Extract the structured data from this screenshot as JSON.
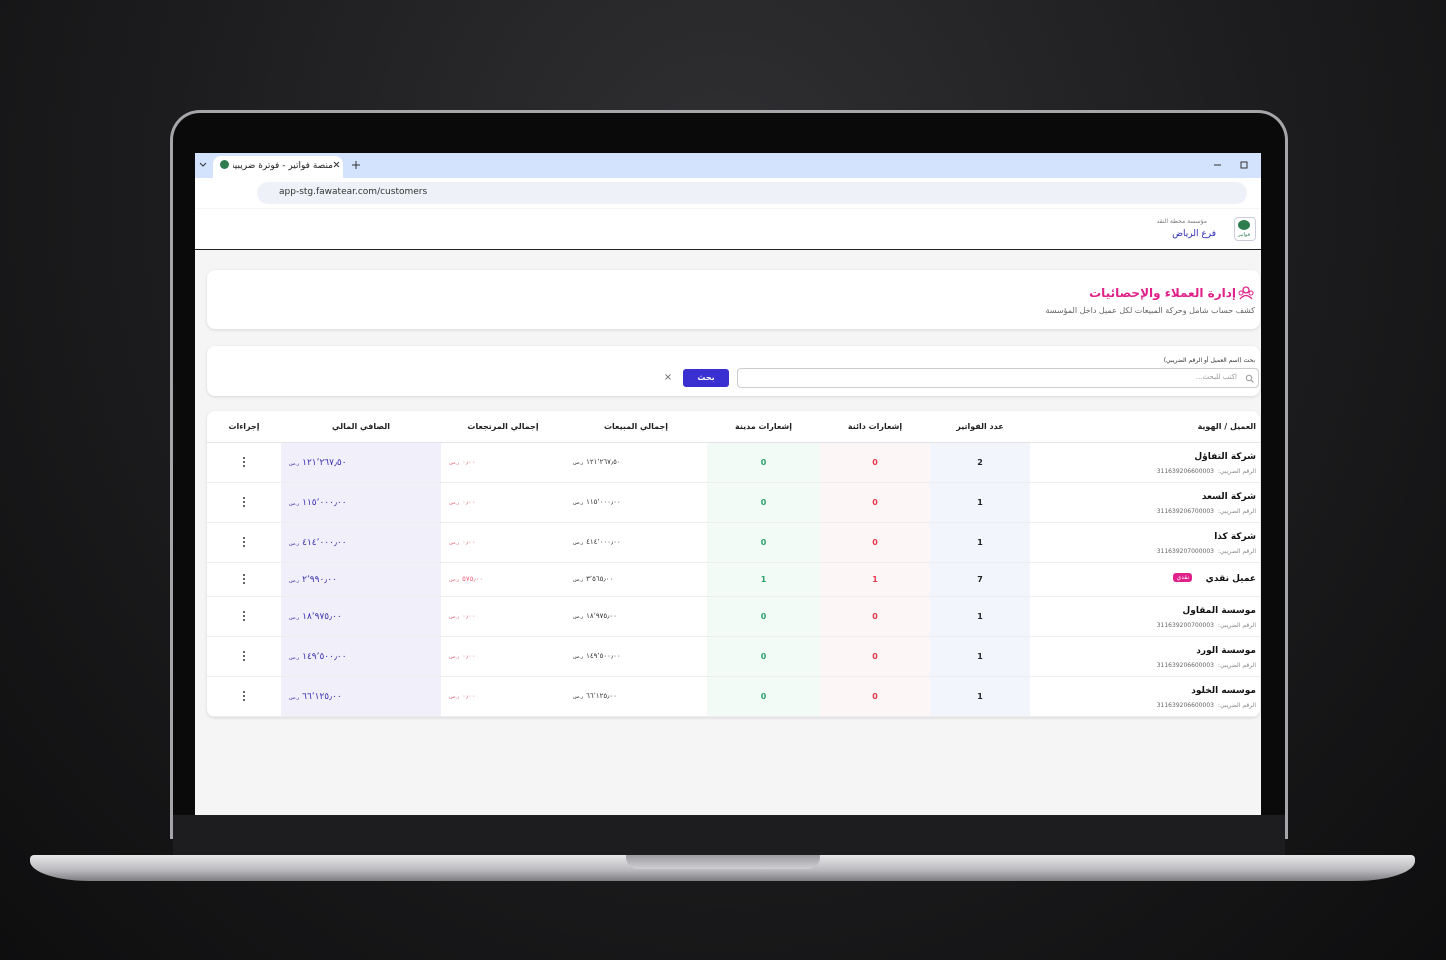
{
  "browser": {
    "tab_title": "منصة فواتير - فوترة ضريبية معت",
    "url": "app-stg.fawatear.com/customers"
  },
  "header": {
    "org": "مؤسسة محطة النقد",
    "branch": "فرع الرياض",
    "logo": "فواتير"
  },
  "page": {
    "title": "إدارة العملاء والإحصائيات",
    "subtitle": "كشف حساب شامل وحركة المبيعات لكل عميل داخل المؤسسة"
  },
  "search": {
    "label": "بحث (اسم العميل أو الرقم الضريبي)",
    "placeholder": "اكتب للبحث...",
    "button": "بحث",
    "clear": "×"
  },
  "table": {
    "columns": [
      "العميل / الهوية",
      "عدد الفواتير",
      "إشعارات دائنة",
      "إشعارات مدينة",
      "إجمالي المبيعات",
      "إجمالي المرتجعات",
      "الصافي المالي",
      "إجراءات"
    ],
    "tax_label": "الرقم الضريبي:",
    "currency": "ر.س",
    "rows": [
      {
        "name": "شركة التفاؤل",
        "tax_id": "311639206600003",
        "invoices": 2,
        "credit": 0,
        "debit": 0,
        "sales": "١٢١٬٢٦٧٫٥٠",
        "returns": "٠٫٠٠",
        "net": "١٢١٬٢٦٧٫٥٠"
      },
      {
        "name": "شركة السعد",
        "tax_id": "311639206700003",
        "invoices": 1,
        "credit": 0,
        "debit": 0,
        "sales": "١١٥٬٠٠٠٫٠٠",
        "returns": "٠٫٠٠",
        "net": "١١٥٬٠٠٠٫٠٠"
      },
      {
        "name": "شركة كذا",
        "tax_id": "311639207000003",
        "invoices": 1,
        "credit": 0,
        "debit": 0,
        "sales": "٤١٤٬٠٠٠٫٠٠",
        "returns": "٠٫٠٠",
        "net": "٤١٤٬٠٠٠٫٠٠"
      },
      {
        "name": "عميل نقدي",
        "badge": "نقدي",
        "invoices": 7,
        "credit": 1,
        "debit": 1,
        "sales": "٣٬٥٦٥٫٠٠",
        "returns": "٥٧٥٫٠٠",
        "net": "٢٬٩٩٠٫٠٠"
      },
      {
        "name": "موسسة المقاول",
        "tax_id": "311639200700003",
        "invoices": 1,
        "credit": 0,
        "debit": 0,
        "sales": "١٨٬٩٧٥٫٠٠",
        "returns": "٠٫٠٠",
        "net": "١٨٬٩٧٥٫٠٠"
      },
      {
        "name": "موسسة الورد",
        "tax_id": "311639206600003",
        "invoices": 1,
        "credit": 0,
        "debit": 0,
        "sales": "١٤٩٬٥٠٠٫٠٠",
        "returns": "٠٫٠٠",
        "net": "١٤٩٬٥٠٠٫٠٠"
      },
      {
        "name": "موسسه الخلود",
        "tax_id": "311639206600003",
        "invoices": 1,
        "credit": 0,
        "debit": 0,
        "sales": "٦٦٬١٢٥٫٠٠",
        "returns": "٠٫٠٠",
        "net": "٦٦٬١٢٥٫٠٠"
      }
    ]
  }
}
